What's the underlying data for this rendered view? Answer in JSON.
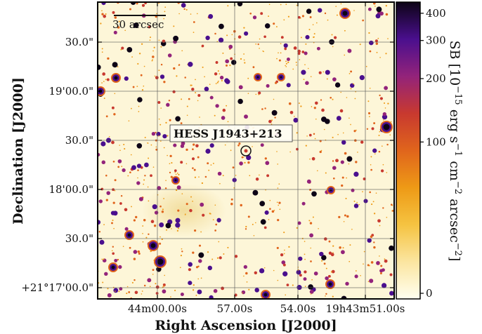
{
  "chart_data": {
    "type": "heatmap",
    "title": "",
    "xlabel": "Right Ascension [J2000]",
    "ylabel": "Declination [J2000]",
    "x_tick_labels": [
      "44m00.00s",
      "57.00s",
      "54.00s",
      "19h43m51.00s"
    ],
    "y_tick_labels": [
      "30.0\"",
      "19'00.0\"",
      "30.0\"",
      "18'00.0\"",
      "30.0\"",
      "+21°17'00.0\""
    ],
    "colorbar": {
      "label_parts": [
        "SB [10",
        "−15",
        " erg s",
        "−1",
        " cm",
        "−2",
        " arcsec",
        "−2",
        "]"
      ],
      "ticks": [
        400,
        300,
        200,
        100,
        0
      ],
      "scale": "asinh",
      "range": [
        0,
        450
      ],
      "colors": [
        "#fffff0",
        "#fbe5a0",
        "#f5c341",
        "#ee9a16",
        "#e0651c",
        "#c8392f",
        "#93237a",
        "#4a0f8e",
        "#0d0416"
      ]
    },
    "scale_bar": {
      "text": "30 arcsec"
    },
    "source_marker": {
      "text": "HESS J1943+213"
    },
    "grid": true
  }
}
